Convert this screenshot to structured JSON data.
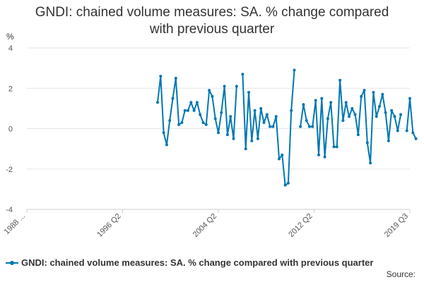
{
  "chart_data": {
    "type": "line",
    "title_line1": "GNDI: chained volume measures: SA. % change compared",
    "title_line2": "with previous quarter",
    "unit_label": "%",
    "ylim": [
      -4,
      4
    ],
    "y_ticks": [
      4,
      2,
      0,
      -2,
      -4
    ],
    "x_tick_labels": [
      "1988 ...",
      "1996 Q2",
      "2004 Q2",
      "2012 Q2",
      "2019 Q3"
    ],
    "x_range": [
      "1988 Q1",
      "2019 Q3"
    ],
    "grid": true,
    "legend_position": "bottom-left",
    "series": [
      {
        "name": "GNDI: chained volume measures: SA. % change compared with previous quarter",
        "color": "#0077b3",
        "x_start": "1998 Q4",
        "values": [
          1.3,
          2.6,
          -0.2,
          -0.8,
          0.4,
          1.5,
          2.5,
          0.2,
          0.3,
          0.9,
          0.9,
          1.3,
          0.9,
          1.3,
          0.7,
          0.3,
          0.2,
          1.9,
          1.6,
          0.5,
          -0.2,
          0.8,
          2.1,
          -0.3,
          0.6,
          -0.5,
          2.1,
          null,
          2.7,
          -1.0,
          1.8,
          -0.6,
          0.9,
          -0.5,
          1.0,
          0.3,
          0.7,
          0.1,
          0.1,
          0.6,
          -1.5,
          -1.3,
          -2.8,
          -2.7,
          0.9,
          2.9,
          null,
          0.1,
          1.2,
          0.4,
          0.1,
          0.1,
          1.4,
          -1.3,
          1.5,
          -1.4,
          0.5,
          1.3,
          -0.9,
          -0.9,
          2.4,
          0.4,
          1.3,
          0.6,
          1.0,
          0.7,
          -0.3,
          1.6,
          1.9,
          -0.7,
          -1.7,
          1.8,
          0.6,
          1.1,
          1.7,
          0.8,
          -0.6,
          0.9,
          0.6,
          -0.1,
          0.7,
          null,
          -0.1,
          1.5,
          -0.2,
          -0.5
        ]
      }
    ]
  },
  "legend": {
    "label": "GNDI: chained volume measures: SA. % change compared with previous quarter"
  },
  "footer": {
    "source_label": "Source:"
  }
}
